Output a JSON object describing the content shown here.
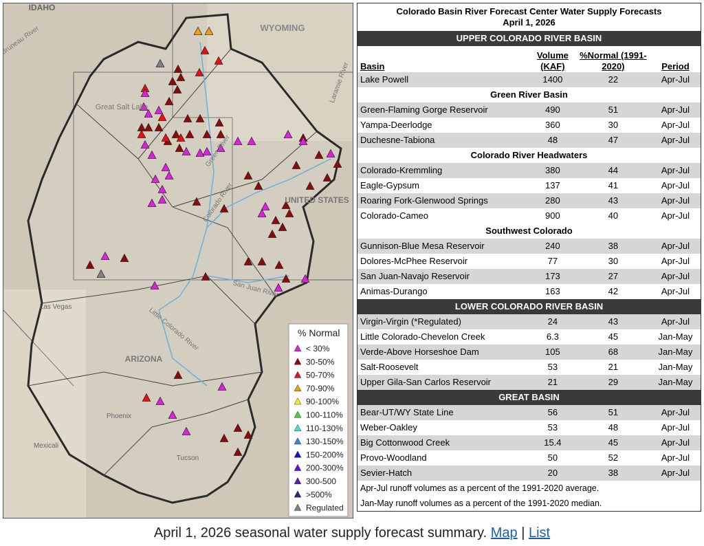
{
  "map": {
    "labels": [
      "IDAHO",
      "WYOMING",
      "Great Salt Lake",
      "Bruneau River",
      "Green River",
      "Colorado River",
      "San Juan River",
      "Little Colorado River",
      "ARIZONA",
      "Las Vegas",
      "Phoenix",
      "Tucson",
      "Mexicali",
      "UNITED STATES",
      "Laramie River"
    ],
    "legend": {
      "title": "% Normal",
      "items": [
        {
          "label": "< 30%",
          "color": "#e020e0"
        },
        {
          "label": "30-50%",
          "color": "#8b0a0a"
        },
        {
          "label": "50-70%",
          "color": "#e81010"
        },
        {
          "label": "70-90%",
          "color": "#f0a010"
        },
        {
          "label": "90-100%",
          "color": "#f0f020"
        },
        {
          "label": "100-110%",
          "color": "#40d040"
        },
        {
          "label": "110-130%",
          "color": "#40e0e0"
        },
        {
          "label": "130-150%",
          "color": "#4080d0"
        },
        {
          "label": "150-200%",
          "color": "#1010d0"
        },
        {
          "label": "200-300%",
          "color": "#6010e0"
        },
        {
          "label": "300-500",
          "color": "#5020b0"
        },
        {
          "label": ">500%",
          "color": "#302080"
        },
        {
          "label": "Regulated",
          "color": "#808080"
        }
      ]
    }
  },
  "table": {
    "title": "Colorado Basin River Forecast Center Water Supply Forecasts",
    "date": "April 1, 2026",
    "columns": [
      "Basin",
      "Volume (KAF)",
      "%Normal (1991-2020)",
      "Period"
    ],
    "regions": [
      {
        "name": "UPPER COLORADO RIVER BASIN",
        "groups": [
          {
            "rows": [
              [
                "Lake Powell",
                1400,
                22,
                "Apr-Jul"
              ]
            ]
          },
          {
            "name": "Green River Basin",
            "rows": [
              [
                "Green-Flaming Gorge Reservoir",
                490,
                51,
                "Apr-Jul"
              ],
              [
                "Yampa-Deerlodge",
                360,
                30,
                "Apr-Jul"
              ],
              [
                "Duchesne-Tabiona",
                48,
                47,
                "Apr-Jul"
              ]
            ]
          },
          {
            "name": "Colorado River Headwaters",
            "rows": [
              [
                "Colorado-Kremmling",
                380,
                44,
                "Apr-Jul"
              ],
              [
                "Eagle-Gypsum",
                137,
                41,
                "Apr-Jul"
              ],
              [
                "Roaring Fork-Glenwood Springs",
                280,
                43,
                "Apr-Jul"
              ],
              [
                "Colorado-Cameo",
                900,
                40,
                "Apr-Jul"
              ]
            ]
          },
          {
            "name": "Southwest Colorado",
            "rows": [
              [
                "Gunnison-Blue Mesa Reservoir",
                240,
                38,
                "Apr-Jul"
              ],
              [
                "Dolores-McPhee Reservoir",
                77,
                30,
                "Apr-Jul"
              ],
              [
                "San Juan-Navajo Reservoir",
                173,
                27,
                "Apr-Jul"
              ],
              [
                "Animas-Durango",
                163,
                42,
                "Apr-Jul"
              ]
            ]
          }
        ]
      },
      {
        "name": "LOWER COLORADO RIVER BASIN",
        "groups": [
          {
            "rows": [
              [
                "Virgin-Virgin (*Regulated)",
                24,
                43,
                "Apr-Jul"
              ],
              [
                "Little Colorado-Chevelon Creek",
                6.3,
                45,
                "Jan-May"
              ],
              [
                "Verde-Above Horseshoe Dam",
                105,
                68,
                "Jan-May"
              ],
              [
                "Salt-Roosevelt",
                53,
                21,
                "Jan-May"
              ],
              [
                "Upper Gila-San Carlos Reservoir",
                21,
                29,
                "Jan-May"
              ]
            ]
          }
        ]
      },
      {
        "name": "GREAT BASIN",
        "groups": [
          {
            "rows": [
              [
                "Bear-UT/WY State Line",
                56,
                51,
                "Apr-Jul"
              ],
              [
                "Weber-Oakley",
                53,
                48,
                "Apr-Jul"
              ],
              [
                "Big Cottonwood Creek",
                15.4,
                45,
                "Apr-Jul"
              ],
              [
                "Provo-Woodland",
                50,
                52,
                "Apr-Jul"
              ],
              [
                "Sevier-Hatch",
                20,
                38,
                "Apr-Jul"
              ]
            ]
          }
        ]
      }
    ],
    "notes": [
      "Apr-Jul runoff volumes as a percent of the 1991-2020 average.",
      "Jan-May runoff volumes as a percent of the 1991-2020 median."
    ]
  },
  "caption": {
    "text": "April 1, 2026 seasonal water supply forecast summary.",
    "links": [
      "Map",
      "List"
    ],
    "separator": "|"
  }
}
